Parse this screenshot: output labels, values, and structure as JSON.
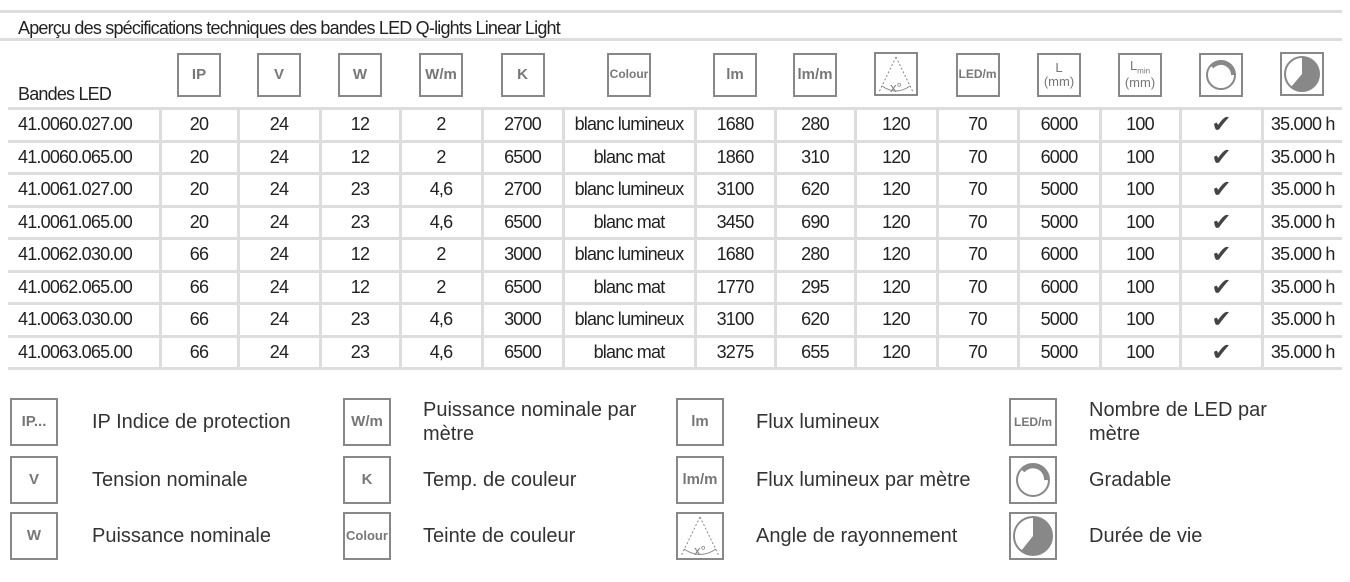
{
  "title": "Aperçu des spécifications techniques des bandes LED Q-lights Linear Light",
  "header": {
    "first": "Bandes LED",
    "icons": {
      "ip": "IP",
      "v": "V",
      "w": "W",
      "wm": "W/m",
      "k": "K",
      "colour": "Colour",
      "lm": "lm",
      "lmm": "lm/m",
      "angle": "x°",
      "ledm": "LED/m",
      "l": "L",
      "l_unit": "(mm)",
      "lmin": "L",
      "lmin_sub": "min",
      "lmin_unit": "(mm)"
    }
  },
  "rows": [
    [
      "41.0060.027.00",
      "20",
      "24",
      "12",
      "2",
      "2700",
      "blanc lumineux",
      "1680",
      "280",
      "120",
      "70",
      "6000",
      "100",
      "✔",
      "35.000 h"
    ],
    [
      "41.0060.065.00",
      "20",
      "24",
      "12",
      "2",
      "6500",
      "blanc mat",
      "1860",
      "310",
      "120",
      "70",
      "6000",
      "100",
      "✔",
      "35.000 h"
    ],
    [
      "41.0061.027.00",
      "20",
      "24",
      "23",
      "4,6",
      "2700",
      "blanc lumineux",
      "3100",
      "620",
      "120",
      "70",
      "5000",
      "100",
      "✔",
      "35.000 h"
    ],
    [
      "41.0061.065.00",
      "20",
      "24",
      "23",
      "4,6",
      "6500",
      "blanc mat",
      "3450",
      "690",
      "120",
      "70",
      "5000",
      "100",
      "✔",
      "35.000 h"
    ],
    [
      "41.0062.030.00",
      "66",
      "24",
      "12",
      "2",
      "3000",
      "blanc lumineux",
      "1680",
      "280",
      "120",
      "70",
      "6000",
      "100",
      "✔",
      "35.000 h"
    ],
    [
      "41.0062.065.00",
      "66",
      "24",
      "12",
      "2",
      "6500",
      "blanc mat",
      "1770",
      "295",
      "120",
      "70",
      "6000",
      "100",
      "✔",
      "35.000 h"
    ],
    [
      "41.0063.030.00",
      "66",
      "24",
      "23",
      "4,6",
      "3000",
      "blanc lumineux",
      "3100",
      "620",
      "120",
      "70",
      "5000",
      "100",
      "✔",
      "35.000 h"
    ],
    [
      "41.0063.065.00",
      "66",
      "24",
      "23",
      "4,6",
      "6500",
      "blanc mat",
      "3275",
      "655",
      "120",
      "70",
      "5000",
      "100",
      "✔",
      "35.000 h"
    ]
  ],
  "legend": {
    "ip": {
      "icon": "IP...",
      "text": "IP Indice de protection"
    },
    "v": {
      "icon": "V",
      "text": "Tension nominale"
    },
    "w": {
      "icon": "W",
      "text": "Puissance nominale"
    },
    "wm": {
      "icon": "W/m",
      "text": "Puissance nominale par mètre"
    },
    "k": {
      "icon": "K",
      "text": "Temp. de couleur"
    },
    "colour": {
      "icon": "Colour",
      "text": "Teinte de couleur"
    },
    "lm": {
      "icon": "lm",
      "text": "Flux lumineux"
    },
    "lmm": {
      "icon": "lm/m",
      "text": "Flux lumineux par mètre"
    },
    "angle": {
      "icon": "x°",
      "text": "Angle de rayonnement"
    },
    "ledm": {
      "icon": "LED/m",
      "text": "Nombre de LED par mètre"
    },
    "dim": {
      "text": "Gradable"
    },
    "life": {
      "text": "Durée de vie"
    }
  }
}
